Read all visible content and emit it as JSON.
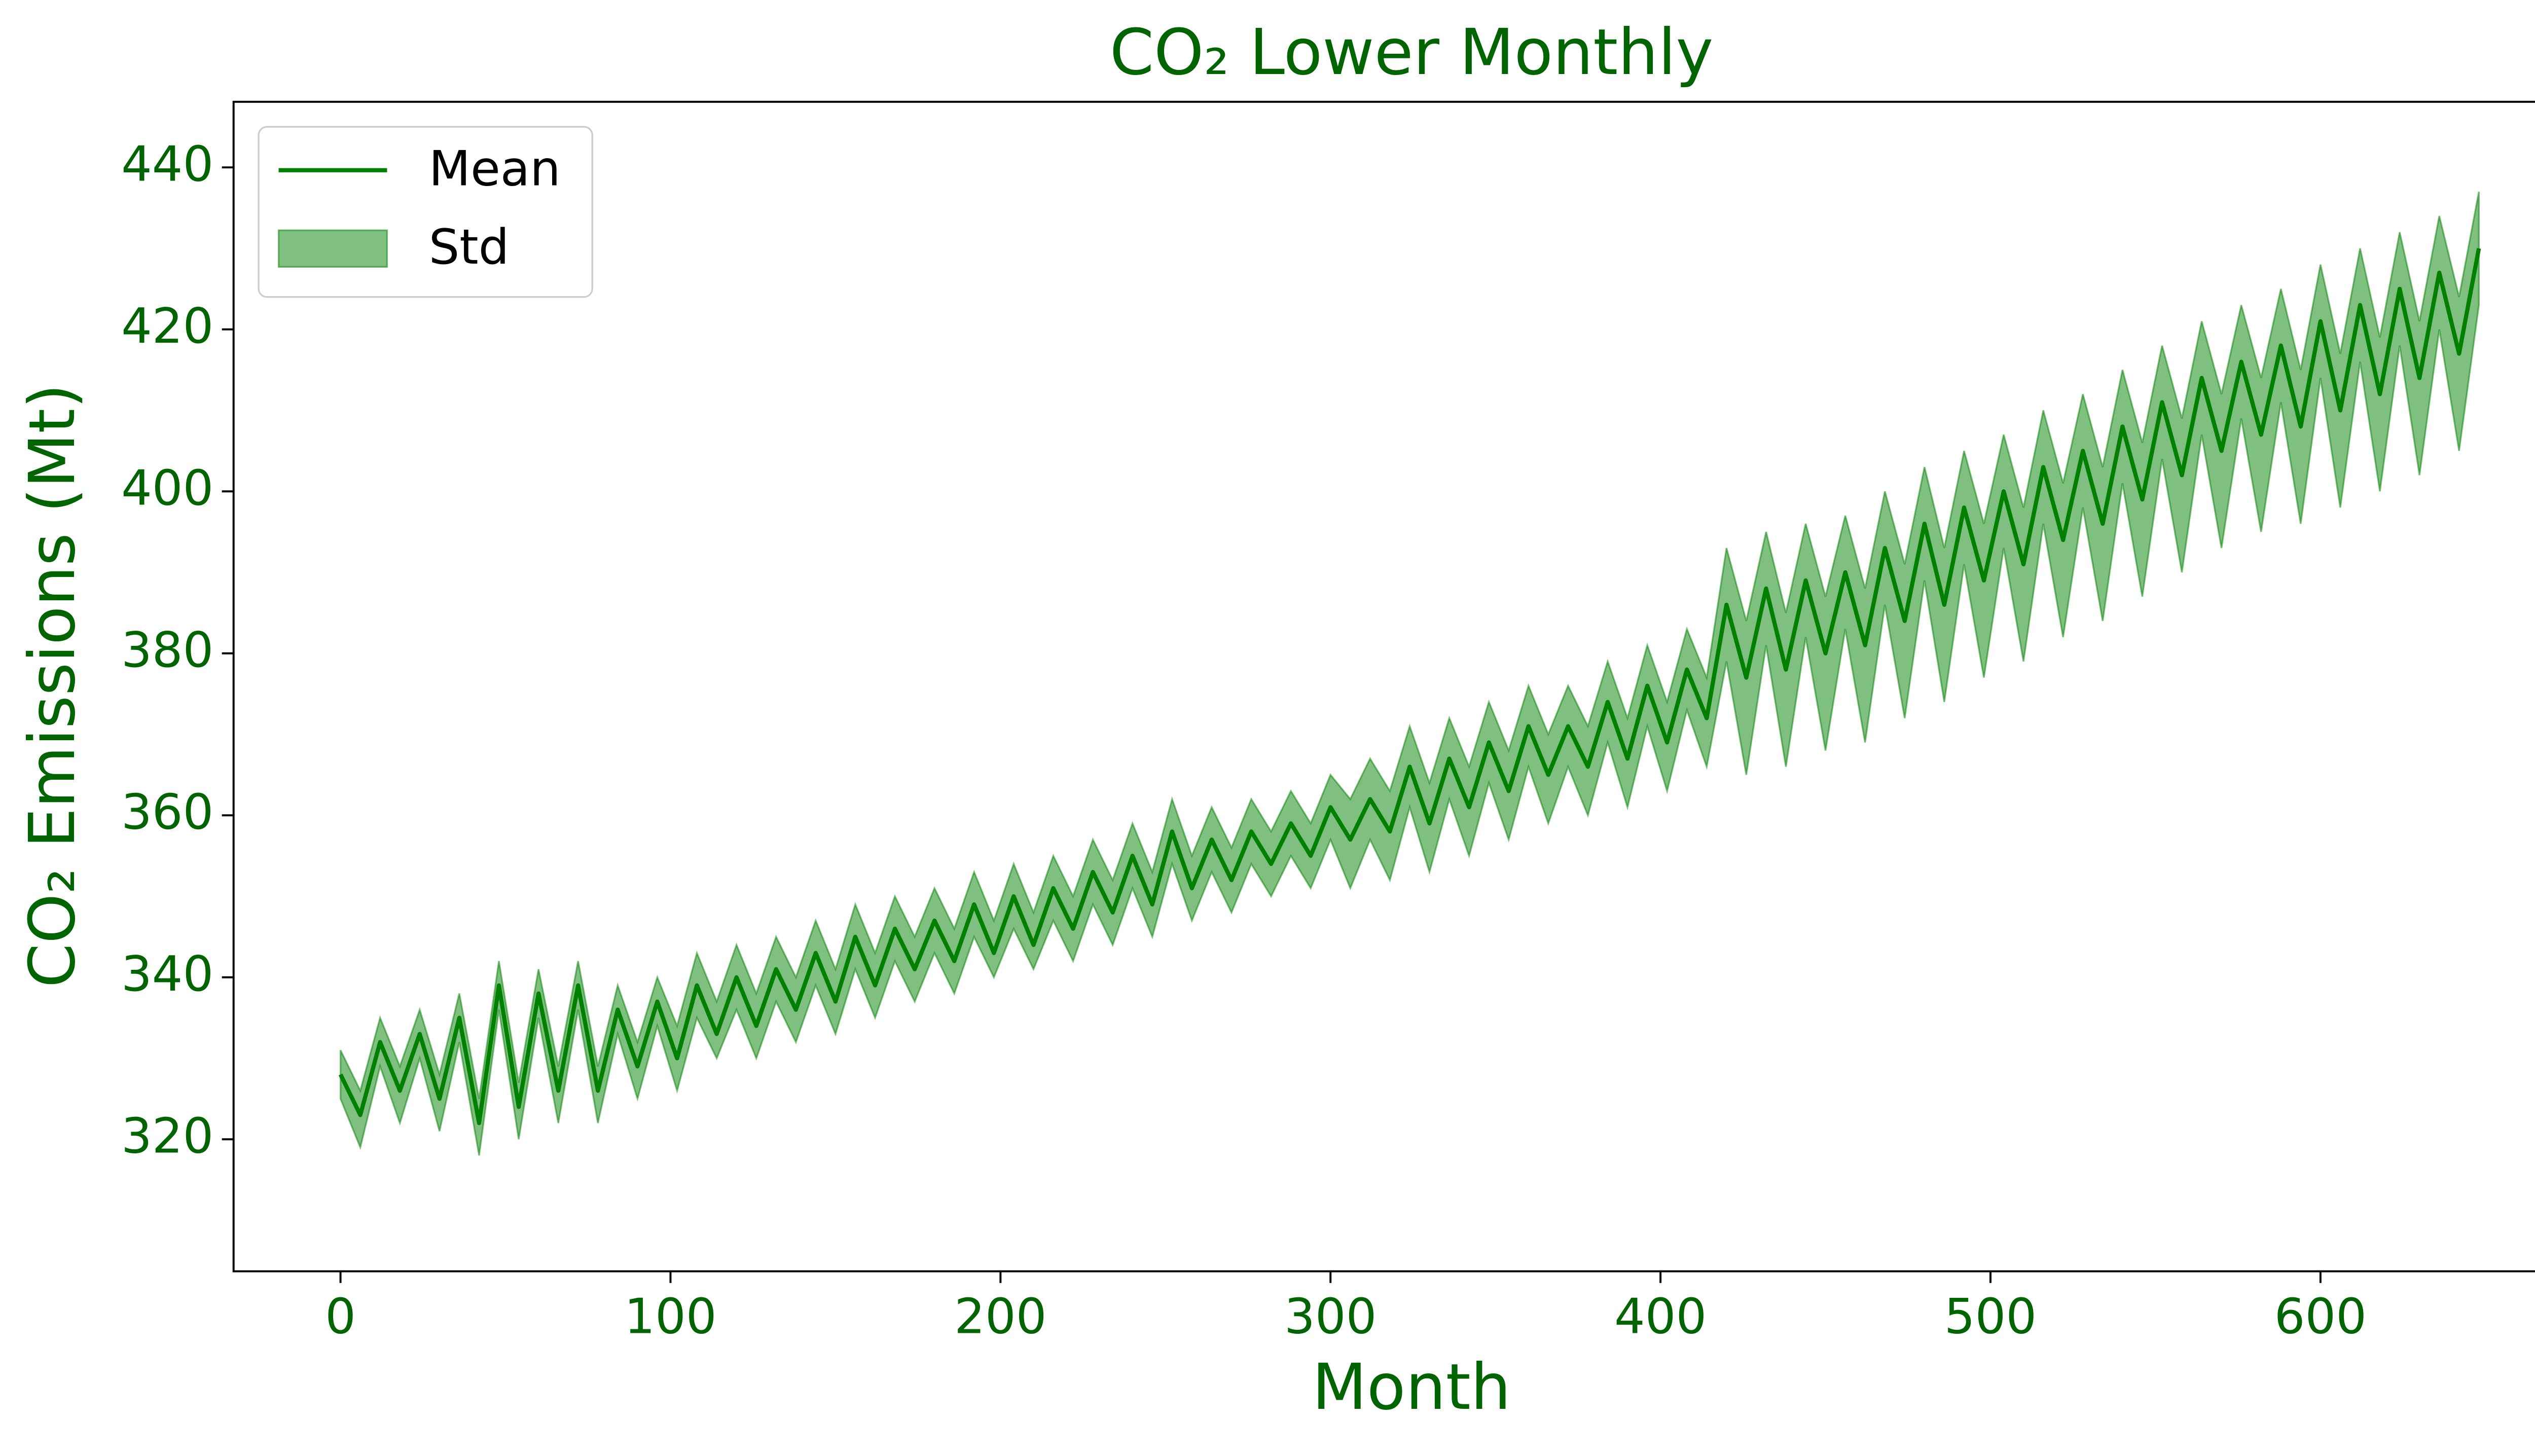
{
  "chart_data": {
    "type": "line",
    "title": "CO₂ Lower Monthly",
    "xlabel": "Month",
    "ylabel": "CO₂ Emissions (Mt)",
    "x": [
      0,
      6,
      12,
      18,
      24,
      30,
      36,
      42,
      48,
      54,
      60,
      66,
      72,
      78,
      84,
      90,
      96,
      102,
      108,
      114,
      120,
      126,
      132,
      138,
      144,
      150,
      156,
      162,
      168,
      174,
      180,
      186,
      192,
      198,
      204,
      210,
      216,
      222,
      228,
      234,
      240,
      246,
      252,
      258,
      264,
      270,
      276,
      282,
      288,
      294,
      300,
      306,
      312,
      318,
      324,
      330,
      336,
      342,
      348,
      354,
      360,
      366,
      372,
      378,
      384,
      390,
      396,
      402,
      408,
      414,
      420,
      426,
      432,
      438,
      444,
      450,
      456,
      462,
      468,
      474,
      480,
      486,
      492,
      498,
      504,
      510,
      516,
      522,
      528,
      534,
      540,
      546,
      552,
      558,
      564,
      570,
      576,
      582,
      588,
      594,
      600,
      606,
      612,
      618,
      624,
      630,
      636,
      642,
      648
    ],
    "series": [
      {
        "name": "Mean",
        "color": "#008000",
        "values": [
          328,
          323,
          332,
          326,
          333,
          325,
          335,
          322,
          339,
          324,
          338,
          326,
          339,
          326,
          336,
          329,
          337,
          330,
          339,
          333,
          340,
          334,
          341,
          336,
          343,
          337,
          345,
          339,
          346,
          341,
          347,
          342,
          349,
          343,
          350,
          344,
          351,
          346,
          353,
          348,
          355,
          349,
          358,
          351,
          357,
          352,
          358,
          354,
          359,
          355,
          361,
          357,
          362,
          358,
          366,
          359,
          367,
          361,
          369,
          363,
          371,
          365,
          371,
          366,
          374,
          367,
          376,
          369,
          378,
          372,
          386,
          377,
          388,
          378,
          389,
          380,
          390,
          381,
          393,
          384,
          396,
          386,
          398,
          389,
          400,
          391,
          403,
          394,
          405,
          396,
          408,
          399,
          411,
          402,
          414,
          405,
          416,
          407,
          418,
          408,
          421,
          410,
          423,
          412,
          425,
          414,
          427,
          417,
          430
        ]
      }
    ],
    "band": {
      "name": "Std",
      "color": "#008000",
      "upper": [
        331,
        326,
        335,
        329,
        336,
        328,
        338,
        325,
        342,
        327,
        341,
        329,
        342,
        329,
        339,
        332,
        340,
        334,
        343,
        337,
        344,
        338,
        345,
        340,
        347,
        341,
        349,
        343,
        350,
        345,
        351,
        346,
        353,
        347,
        354,
        348,
        355,
        350,
        357,
        352,
        359,
        353,
        362,
        355,
        361,
        356,
        362,
        358,
        363,
        359,
        365,
        362,
        367,
        363,
        371,
        364,
        372,
        366,
        374,
        368,
        376,
        370,
        376,
        371,
        379,
        372,
        381,
        374,
        383,
        377,
        393,
        384,
        395,
        385,
        396,
        387,
        397,
        388,
        400,
        391,
        403,
        393,
        405,
        396,
        407,
        398,
        410,
        401,
        412,
        403,
        415,
        406,
        418,
        409,
        421,
        412,
        423,
        414,
        425,
        415,
        428,
        417,
        430,
        419,
        432,
        421,
        434,
        424,
        437
      ],
      "lower": [
        325,
        319,
        329,
        322,
        330,
        321,
        332,
        318,
        336,
        320,
        335,
        322,
        336,
        322,
        333,
        325,
        334,
        326,
        335,
        330,
        336,
        330,
        337,
        332,
        339,
        333,
        341,
        335,
        342,
        337,
        343,
        338,
        345,
        340,
        346,
        341,
        347,
        342,
        349,
        344,
        351,
        345,
        354,
        347,
        353,
        348,
        354,
        350,
        355,
        351,
        357,
        351,
        357,
        352,
        361,
        353,
        362,
        355,
        364,
        357,
        366,
        359,
        366,
        360,
        369,
        361,
        371,
        363,
        373,
        366,
        379,
        365,
        381,
        366,
        382,
        368,
        383,
        369,
        386,
        372,
        389,
        374,
        391,
        377,
        393,
        379,
        396,
        382,
        398,
        384,
        401,
        387,
        404,
        390,
        407,
        393,
        409,
        395,
        411,
        396,
        414,
        398,
        416,
        400,
        418,
        402,
        420,
        405,
        423
      ]
    },
    "xlim": [
      -32.4,
      681.5
    ],
    "ylim": [
      303.7,
      448.1
    ],
    "xticks": [
      0,
      100,
      200,
      300,
      400,
      500,
      600
    ],
    "yticks": [
      320,
      340,
      360,
      380,
      400,
      420,
      440
    ],
    "legend": "upper left",
    "text_color": "#006400"
  }
}
